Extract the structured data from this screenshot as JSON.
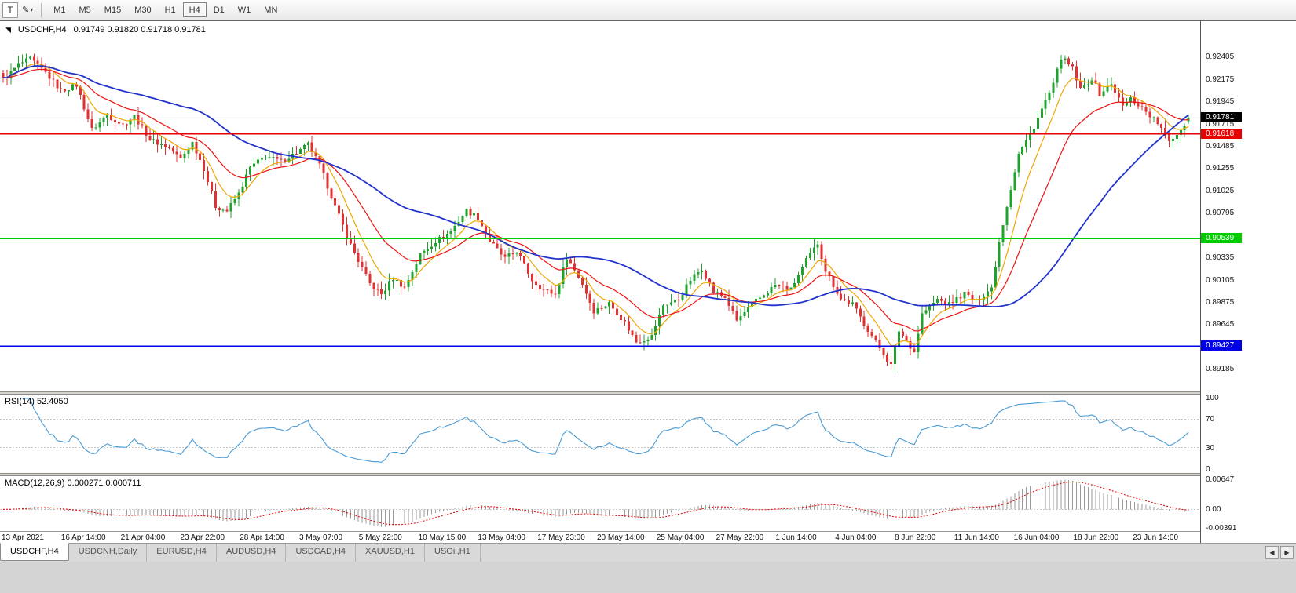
{
  "toolbar": {
    "cursor_tool": "T",
    "draw_tool": "✎",
    "draw_tool_caret": "▾",
    "timeframes": [
      "M1",
      "M5",
      "M15",
      "M30",
      "H1",
      "H4",
      "D1",
      "W1",
      "MN"
    ],
    "active_timeframe": "H4"
  },
  "tabs": {
    "items": [
      "USDCHF,H4",
      "USDCNH,Daily",
      "EURUSD,H4",
      "AUDUSD,H4",
      "USDCAD,H4",
      "XAUUSD,H1",
      "USOil,H1"
    ],
    "active": "USDCHF,H4",
    "scroll_left": "◀",
    "scroll_right": "▶"
  },
  "chart_data": {
    "type": "candlestick",
    "symbol": "USDCHF",
    "timeframe": "H4",
    "header": "USDCHF,H4",
    "header_ohlc": "0.91749 0.91820 0.91718 0.91781",
    "ohlc_last": {
      "o": 0.91749,
      "h": 0.9182,
      "l": 0.91718,
      "c": 0.91781
    },
    "current_price": 0.91781,
    "bars": 308,
    "noise": 0.00055,
    "wick": 0.00085,
    "anchors": [
      [
        0,
        0.9218
      ],
      [
        4,
        0.9233
      ],
      [
        7,
        0.9239
      ],
      [
        11,
        0.9225
      ],
      [
        15,
        0.9206
      ],
      [
        19,
        0.9212
      ],
      [
        23,
        0.9166
      ],
      [
        27,
        0.9181
      ],
      [
        31,
        0.9171
      ],
      [
        34,
        0.918
      ],
      [
        38,
        0.9156
      ],
      [
        43,
        0.9147
      ],
      [
        46,
        0.9136
      ],
      [
        49,
        0.9153
      ],
      [
        52,
        0.9126
      ],
      [
        55,
        0.9087
      ],
      [
        58,
        0.9082
      ],
      [
        61,
        0.91
      ],
      [
        64,
        0.9127
      ],
      [
        68,
        0.9139
      ],
      [
        72,
        0.9133
      ],
      [
        77,
        0.9145
      ],
      [
        79,
        0.9151
      ],
      [
        82,
        0.9129
      ],
      [
        86,
        0.9087
      ],
      [
        90,
        0.9047
      ],
      [
        92,
        0.9031
      ],
      [
        95,
        0.9007
      ],
      [
        98,
        0.8996
      ],
      [
        101,
        0.9013
      ],
      [
        104,
        0.9003
      ],
      [
        108,
        0.9037
      ],
      [
        112,
        0.9051
      ],
      [
        116,
        0.9061
      ],
      [
        120,
        0.9083
      ],
      [
        123,
        0.9075
      ],
      [
        126,
        0.9051
      ],
      [
        130,
        0.9033
      ],
      [
        133,
        0.9041
      ],
      [
        137,
        0.9011
      ],
      [
        140,
        0.9001
      ],
      [
        143,
        0.8996
      ],
      [
        146,
        0.9035
      ],
      [
        150,
        0.9007
      ],
      [
        153,
        0.8979
      ],
      [
        157,
        0.8987
      ],
      [
        161,
        0.8967
      ],
      [
        164,
        0.8947
      ],
      [
        168,
        0.8953
      ],
      [
        171,
        0.8985
      ],
      [
        175,
        0.8991
      ],
      [
        178,
        0.9011
      ],
      [
        181,
        0.9023
      ],
      [
        184,
        0.8999
      ],
      [
        187,
        0.8993
      ],
      [
        190,
        0.8969
      ],
      [
        194,
        0.8986
      ],
      [
        198,
        0.8999
      ],
      [
        200,
        0.9006
      ],
      [
        204,
        0.9001
      ],
      [
        208,
        0.9031
      ],
      [
        211,
        0.9049
      ],
      [
        213,
        0.9021
      ],
      [
        217,
        0.8991
      ],
      [
        220,
        0.8986
      ],
      [
        223,
        0.8966
      ],
      [
        227,
        0.8941
      ],
      [
        230,
        0.8923
      ],
      [
        232,
        0.8959
      ],
      [
        236,
        0.8937
      ],
      [
        238,
        0.8976
      ],
      [
        242,
        0.8991
      ],
      [
        245,
        0.8986
      ],
      [
        249,
        0.8997
      ],
      [
        252,
        0.8989
      ],
      [
        256,
        0.9003
      ],
      [
        258,
        0.9051
      ],
      [
        261,
        0.9106
      ],
      [
        263,
        0.9141
      ],
      [
        266,
        0.9161
      ],
      [
        269,
        0.9187
      ],
      [
        272,
        0.9212
      ],
      [
        274,
        0.9241
      ],
      [
        277,
        0.9229
      ],
      [
        279,
        0.9207
      ],
      [
        282,
        0.9219
      ],
      [
        284,
        0.9203
      ],
      [
        287,
        0.9213
      ],
      [
        290,
        0.919
      ],
      [
        292,
        0.9198
      ],
      [
        295,
        0.9189
      ],
      [
        299,
        0.9173
      ],
      [
        302,
        0.9154
      ],
      [
        305,
        0.9166
      ],
      [
        307,
        0.91781
      ]
    ],
    "colors": {
      "up": "#1fa32e",
      "down": "#e03232"
    },
    "price_axis": {
      "min": 0.8896,
      "max": 0.9278,
      "ticks": [
        "0.92405",
        "0.92175",
        "0.91945",
        "0.91715",
        "0.91485",
        "0.91255",
        "0.91025",
        "0.90795",
        "0.90335",
        "0.90105",
        "0.89875",
        "0.89645",
        "0.89185"
      ],
      "current": {
        "label": "0.91781",
        "bg": "#000000"
      }
    },
    "hlines": [
      {
        "label": "0.91618",
        "value": 0.91618,
        "color": "#e60000"
      },
      {
        "label": "0.90539",
        "value": 0.90539,
        "color": "#00cc00"
      },
      {
        "label": "0.89427",
        "value": 0.89427,
        "color": "#0000e6"
      }
    ],
    "moving_averages": [
      {
        "type": "ema",
        "period": 8,
        "color": "#f0a500",
        "width": 1.2
      },
      {
        "type": "ema",
        "period": 21,
        "color": "#ee1111",
        "width": 1.2
      },
      {
        "type": "sma",
        "period": 50,
        "color": "#2233cc",
        "width": 1.8
      }
    ],
    "rsi": {
      "label": "RSI(14) 52.4050",
      "period": 14,
      "value": 52.405,
      "color": "#4a9bd4",
      "levels": [
        70,
        30
      ],
      "ticks": [
        "100",
        "70",
        "30",
        "0"
      ]
    },
    "macd": {
      "label": "MACD(12,26,9) 0.000271 0.000711",
      "fast": 12,
      "slow": 26,
      "signal": 9,
      "values": [
        0.000271,
        0.000711
      ],
      "hist_color": "#9a9a9a",
      "signal_color": "#e00000",
      "ticks": [
        {
          "label": "0.00647",
          "value": 0.00647
        },
        {
          "label": "0.00",
          "value": 0
        },
        {
          "label": "-0.00391",
          "value": -0.00391
        }
      ]
    },
    "time_labels": [
      "13 Apr 2021",
      "16 Apr 14:00",
      "21 Apr 04:00",
      "23 Apr 22:00",
      "28 Apr 14:00",
      "3 May 07:00",
      "5 May 22:00",
      "10 May 15:00",
      "13 May 04:00",
      "17 May 23:00",
      "20 May 14:00",
      "25 May 04:00",
      "27 May 22:00",
      "1 Jun 14:00",
      "4 Jun 04:00",
      "8 Jun 22:00",
      "11 Jun 14:00",
      "16 Jun 04:00",
      "18 Jun 22:00",
      "23 Jun 14:00"
    ]
  }
}
